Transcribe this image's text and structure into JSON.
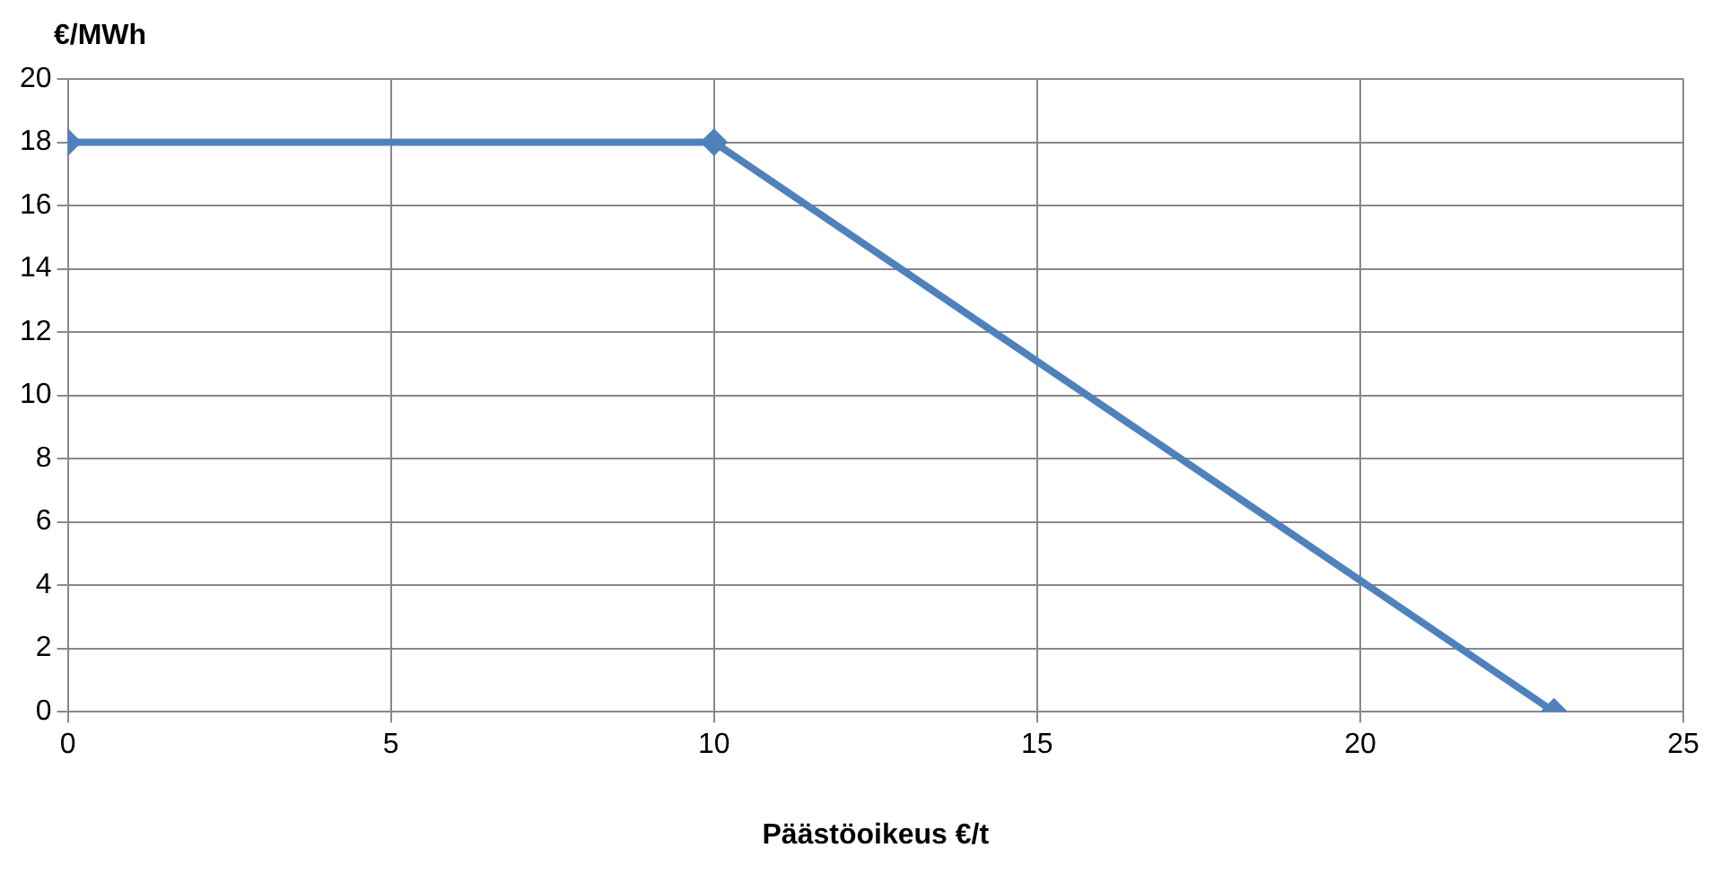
{
  "chart_data": {
    "type": "line",
    "xlabel": "Päästöoikeus €/t",
    "ylabel": "€/MWh",
    "x": [
      0,
      10,
      23
    ],
    "series": [
      {
        "color": "#4f81bd",
        "values": [
          18,
          18,
          0
        ]
      }
    ],
    "xlim": [
      0,
      25
    ],
    "xticks": [
      0,
      5,
      10,
      15,
      20,
      25
    ],
    "ylim": [
      0,
      20
    ],
    "yticks": [
      0,
      2,
      4,
      6,
      8,
      10,
      12,
      14,
      16,
      18,
      20
    ],
    "grid": true,
    "legend": false,
    "marker": "diamond",
    "line_style": "solid"
  }
}
